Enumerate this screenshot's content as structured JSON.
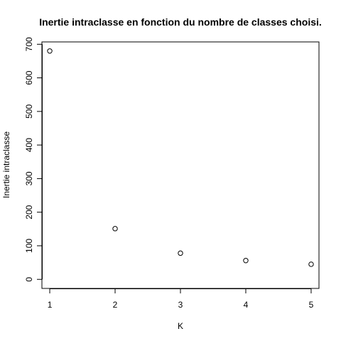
{
  "chart_data": {
    "type": "scatter",
    "title": "Inertie intraclasse en fonction du nombre de classes choisi.",
    "xlabel": "K",
    "ylabel": "Inertie intraclasse",
    "x": [
      1,
      2,
      3,
      4,
      5
    ],
    "y": [
      680,
      151,
      78,
      56,
      45
    ],
    "xlim": [
      0.88,
      5.12
    ],
    "ylim": [
      -27,
      707
    ],
    "xticks": [
      1,
      2,
      3,
      4,
      5
    ],
    "yticks": [
      0,
      100,
      200,
      300,
      400,
      500,
      600,
      700
    ],
    "grid": false,
    "marker": "open-circle",
    "colors": {
      "marker": "#000000",
      "axes": "#000000",
      "background": "#ffffff"
    }
  }
}
